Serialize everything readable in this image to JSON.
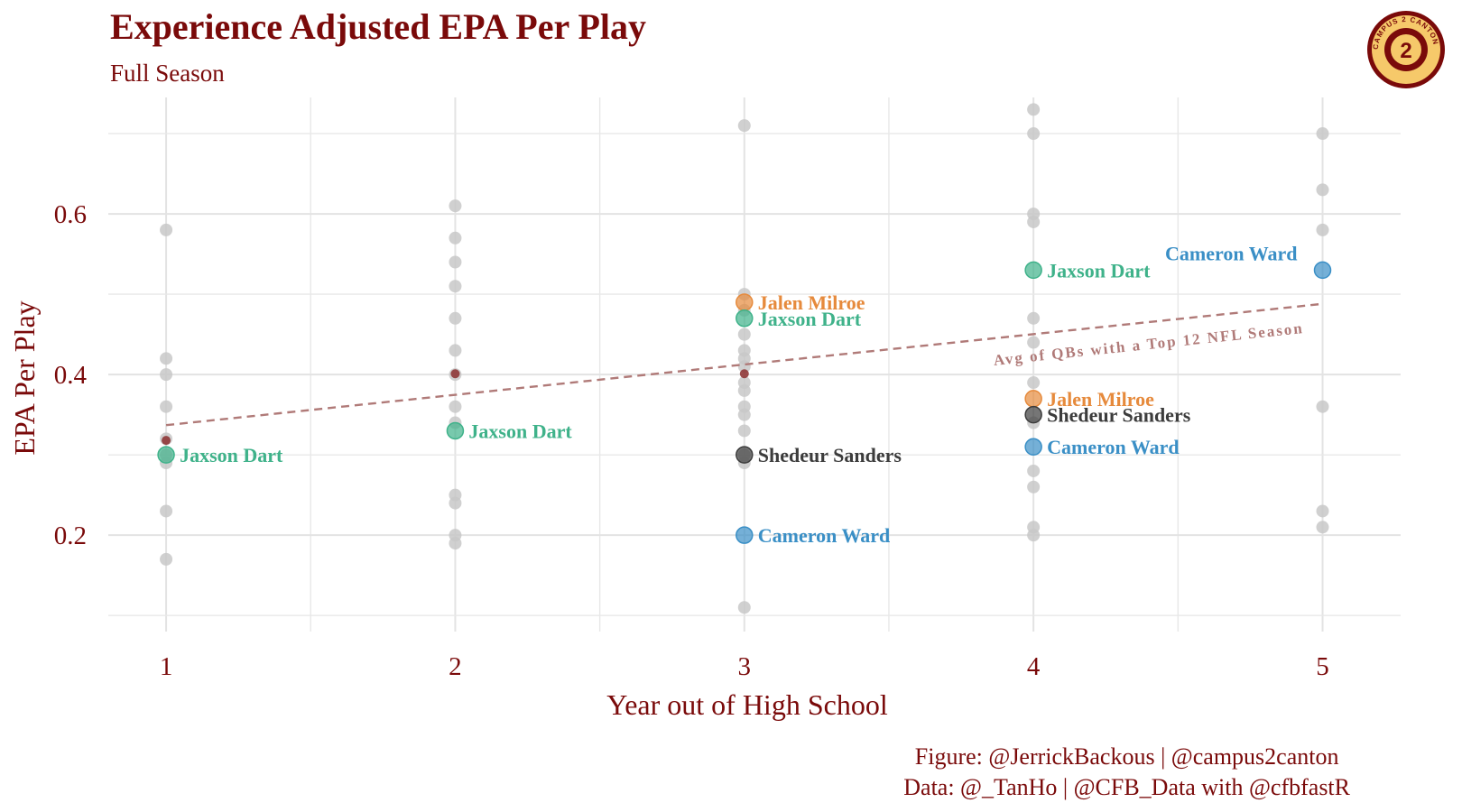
{
  "title": "Experience Adjusted EPA Per Play",
  "subtitle": "Full Season",
  "caption": {
    "line1": "Figure: @JerrickBackous | @campus2canton",
    "line2": "Data: @_TanHo | @CFB_Data with @cfbfastR"
  },
  "logo_text": "CAMPUS 2 CANTON",
  "chart_data": {
    "type": "scatter",
    "title": "Experience Adjusted EPA Per Play",
    "subtitle": "Full Season",
    "xlabel": "Year out of High School",
    "ylabel": "EPA Per Play",
    "x_ticks": [
      "1",
      "2",
      "3",
      "4",
      "5"
    ],
    "y_ticks": [
      "0.2",
      "0.4",
      "0.6"
    ],
    "xlim": [
      0.8,
      5.27
    ],
    "ylim": [
      0.08,
      0.745
    ],
    "grid": true,
    "legend": "none",
    "background_points": [
      {
        "x": 1,
        "y": 0.58
      },
      {
        "x": 1,
        "y": 0.42
      },
      {
        "x": 1,
        "y": 0.4
      },
      {
        "x": 1,
        "y": 0.36
      },
      {
        "x": 1,
        "y": 0.32
      },
      {
        "x": 1,
        "y": 0.3
      },
      {
        "x": 1,
        "y": 0.29
      },
      {
        "x": 1,
        "y": 0.23
      },
      {
        "x": 1,
        "y": 0.17
      },
      {
        "x": 2,
        "y": 0.61
      },
      {
        "x": 2,
        "y": 0.57
      },
      {
        "x": 2,
        "y": 0.54
      },
      {
        "x": 2,
        "y": 0.51
      },
      {
        "x": 2,
        "y": 0.47
      },
      {
        "x": 2,
        "y": 0.43
      },
      {
        "x": 2,
        "y": 0.4
      },
      {
        "x": 2,
        "y": 0.36
      },
      {
        "x": 2,
        "y": 0.34
      },
      {
        "x": 2,
        "y": 0.25
      },
      {
        "x": 2,
        "y": 0.24
      },
      {
        "x": 2,
        "y": 0.2
      },
      {
        "x": 2,
        "y": 0.19
      },
      {
        "x": 3,
        "y": 0.71
      },
      {
        "x": 3,
        "y": 0.5
      },
      {
        "x": 3,
        "y": 0.48
      },
      {
        "x": 3,
        "y": 0.45
      },
      {
        "x": 3,
        "y": 0.43
      },
      {
        "x": 3,
        "y": 0.42
      },
      {
        "x": 3,
        "y": 0.41
      },
      {
        "x": 3,
        "y": 0.39
      },
      {
        "x": 3,
        "y": 0.38
      },
      {
        "x": 3,
        "y": 0.36
      },
      {
        "x": 3,
        "y": 0.35
      },
      {
        "x": 3,
        "y": 0.33
      },
      {
        "x": 3,
        "y": 0.3
      },
      {
        "x": 3,
        "y": 0.29
      },
      {
        "x": 3,
        "y": 0.11
      },
      {
        "x": 4,
        "y": 0.73
      },
      {
        "x": 4,
        "y": 0.7
      },
      {
        "x": 4,
        "y": 0.6
      },
      {
        "x": 4,
        "y": 0.59
      },
      {
        "x": 4,
        "y": 0.47
      },
      {
        "x": 4,
        "y": 0.44
      },
      {
        "x": 4,
        "y": 0.39
      },
      {
        "x": 4,
        "y": 0.34
      },
      {
        "x": 4,
        "y": 0.28
      },
      {
        "x": 4,
        "y": 0.26
      },
      {
        "x": 4,
        "y": 0.21
      },
      {
        "x": 4,
        "y": 0.2
      },
      {
        "x": 5,
        "y": 0.7
      },
      {
        "x": 5,
        "y": 0.63
      },
      {
        "x": 5,
        "y": 0.58
      },
      {
        "x": 5,
        "y": 0.36
      },
      {
        "x": 5,
        "y": 0.23
      },
      {
        "x": 5,
        "y": 0.21
      }
    ],
    "avg_points": [
      {
        "x": 1,
        "y": 0.318
      },
      {
        "x": 2,
        "y": 0.401
      },
      {
        "x": 3,
        "y": 0.401
      }
    ],
    "trend_line": {
      "label": "Avg of QBs with a Top 12 NFL Season",
      "x": [
        1,
        5
      ],
      "y": [
        0.337,
        0.488
      ],
      "color": "#b07a78"
    },
    "highlighted": [
      {
        "player": "Jaxson Dart",
        "x": 1,
        "y": 0.3,
        "color": "#3fb28a",
        "label": "Jaxson Dart",
        "label_side": "right"
      },
      {
        "player": "Jaxson Dart",
        "x": 2,
        "y": 0.33,
        "color": "#3fb28a",
        "label": "Jaxson Dart",
        "label_side": "right"
      },
      {
        "player": "Jalen Milroe",
        "x": 3,
        "y": 0.49,
        "color": "#e68a3c",
        "label": "Jalen Milroe",
        "label_side": "right"
      },
      {
        "player": "Jaxson Dart",
        "x": 3,
        "y": 0.47,
        "color": "#3fb28a",
        "label": "Jaxson Dart",
        "label_side": "right"
      },
      {
        "player": "Shedeur Sanders",
        "x": 3,
        "y": 0.3,
        "color": "#3c3c3c",
        "label": "Shedeur Sanders",
        "label_side": "right"
      },
      {
        "player": "Cameron Ward",
        "x": 3,
        "y": 0.2,
        "color": "#3a8fc6",
        "label": "Cameron Ward",
        "label_side": "right"
      },
      {
        "player": "Jaxson Dart",
        "x": 4,
        "y": 0.53,
        "color": "#3fb28a",
        "label": "Jaxson Dart",
        "label_side": "right"
      },
      {
        "player": "Jalen Milroe",
        "x": 4,
        "y": 0.37,
        "color": "#e68a3c",
        "label": "Jalen Milroe",
        "label_side": "right"
      },
      {
        "player": "Shedeur Sanders",
        "x": 4,
        "y": 0.35,
        "color": "#3c3c3c",
        "label": "Shedeur Sanders",
        "label_side": "right"
      },
      {
        "player": "Cameron Ward",
        "x": 4,
        "y": 0.31,
        "color": "#3a8fc6",
        "label": "Cameron Ward",
        "label_side": "right"
      },
      {
        "player": "Cameron Ward",
        "x": 5,
        "y": 0.53,
        "color": "#3a8fc6",
        "label": "Cameron Ward",
        "label_side": "above-left"
      }
    ],
    "colors": {
      "title": "#7a0a0a",
      "background_point": "#c8c8c8",
      "avg_point": "#8b2e2e"
    }
  }
}
